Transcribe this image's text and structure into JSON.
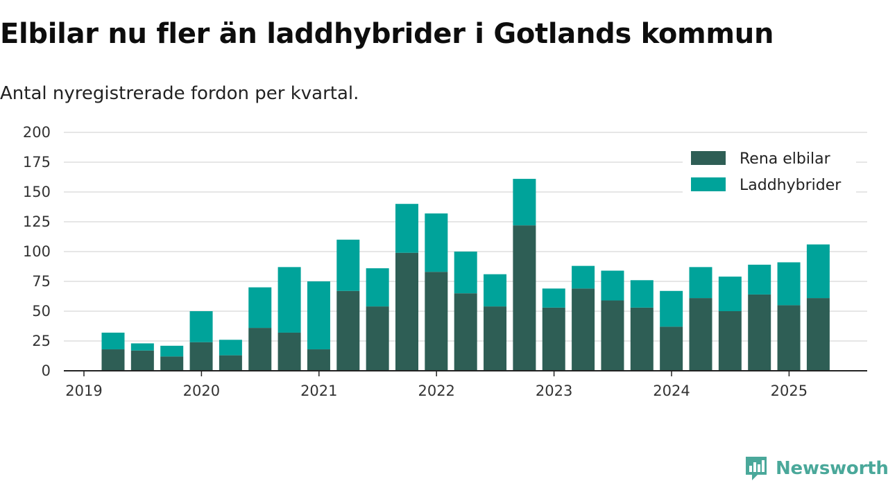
{
  "chart_data": {
    "type": "bar",
    "stacked": true,
    "title": "Elbilar nu fler än laddhybrider i Gotlands kommun",
    "subtitle": "Antal nyregistrerade fordon per kvartal.",
    "ylim": [
      0,
      200
    ],
    "yticks": [
      0,
      25,
      50,
      75,
      100,
      125,
      150,
      175,
      200
    ],
    "xticks": [
      "2019",
      "2020",
      "2021",
      "2022",
      "2023",
      "2024",
      "2025"
    ],
    "xtick_start": "2019",
    "categories": [
      "2019 Q2",
      "2019 Q3",
      "2019 Q4",
      "2020 Q1",
      "2020 Q2",
      "2020 Q3",
      "2020 Q4",
      "2021 Q1",
      "2021 Q2",
      "2021 Q3",
      "2021 Q4",
      "2022 Q1",
      "2022 Q2",
      "2022 Q3",
      "2022 Q4",
      "2023 Q1",
      "2023 Q2",
      "2023 Q3",
      "2023 Q4",
      "2024 Q1",
      "2024 Q2",
      "2024 Q3",
      "2024 Q4",
      "2025 Q1",
      "2025 Q2"
    ],
    "series": [
      {
        "name": "Rena elbilar",
        "color": "#2e5e55",
        "values": [
          18,
          17,
          12,
          24,
          13,
          36,
          32,
          18,
          67,
          54,
          99,
          83,
          65,
          54,
          122,
          53,
          69,
          59,
          53,
          37,
          61,
          50,
          64,
          55,
          61
        ]
      },
      {
        "name": "Laddhybrider",
        "color": "#00a39a",
        "values": [
          14,
          6,
          9,
          26,
          13,
          34,
          55,
          57,
          43,
          32,
          41,
          49,
          35,
          27,
          39,
          16,
          19,
          25,
          23,
          30,
          26,
          29,
          25,
          36,
          45
        ]
      }
    ],
    "legend_position": "top-right",
    "grid": true
  },
  "brand": {
    "name": "Newsworthy"
  }
}
